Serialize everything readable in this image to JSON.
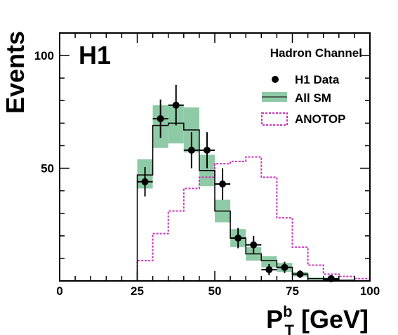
{
  "chart_data": {
    "type": "histogram",
    "experiment_label": "H1",
    "channel_label": "Hadron Channel",
    "xlabel": {
      "main": "P",
      "sup": "b",
      "sub": "T",
      "unit": " [GeV]"
    },
    "ylabel": "Events",
    "xlim": [
      0,
      100
    ],
    "ylim": [
      0,
      110
    ],
    "x_ticks": [
      0,
      25,
      50,
      75,
      100
    ],
    "y_ticks": [
      50,
      100
    ],
    "legend": {
      "position": "top-right",
      "entries": [
        {
          "label": "H1 Data",
          "kind": "marker"
        },
        {
          "label": "All SM",
          "kind": "band"
        },
        {
          "label": "ANOTOP",
          "kind": "dashed"
        }
      ]
    },
    "colors": {
      "data": "#000000",
      "sm_line": "#000000",
      "sm_band": "#8fcaa6",
      "anotop": "#cc33bb"
    },
    "bin_edges": [
      25,
      30,
      35,
      40,
      45,
      50,
      55,
      60,
      65,
      70,
      75,
      80,
      85,
      90,
      95,
      100
    ],
    "all_sm": {
      "name": "All SM",
      "values": [
        47,
        69,
        70,
        67,
        49,
        31,
        19,
        12,
        9,
        6,
        3,
        1,
        0.5,
        0.3,
        0
      ],
      "band_low": [
        41,
        59,
        61,
        57,
        42,
        26,
        15,
        9,
        6,
        4,
        2,
        0.5,
        0,
        0,
        0
      ],
      "band_high": [
        54,
        78,
        78,
        77,
        56,
        36,
        23,
        15,
        11,
        8,
        4,
        1.5,
        1,
        0.5,
        0
      ]
    },
    "anotop": {
      "name": "ANOTOP",
      "values": [
        9,
        21,
        31,
        41,
        46,
        52,
        53,
        55,
        46,
        28,
        15,
        7,
        3,
        2,
        1
      ]
    },
    "h1_data": {
      "name": "H1 Data",
      "points": [
        {
          "x": 27.5,
          "y": 44,
          "err": 6.5
        },
        {
          "x": 32.5,
          "y": 72,
          "err": 8.5
        },
        {
          "x": 37.5,
          "y": 78,
          "err": 9
        },
        {
          "x": 42.5,
          "y": 58,
          "err": 8
        },
        {
          "x": 47.5,
          "y": 58,
          "err": 8
        },
        {
          "x": 52.5,
          "y": 43,
          "err": 7
        },
        {
          "x": 57.5,
          "y": 19,
          "err": 4.5
        },
        {
          "x": 62.5,
          "y": 16,
          "err": 4
        },
        {
          "x": 67.5,
          "y": 5,
          "err": 2.5
        },
        {
          "x": 72.5,
          "y": 6,
          "err": 2.5
        },
        {
          "x": 77.5,
          "y": 3,
          "err": 1.7
        },
        {
          "x": 87.5,
          "y": 1,
          "err": 1
        }
      ]
    }
  }
}
